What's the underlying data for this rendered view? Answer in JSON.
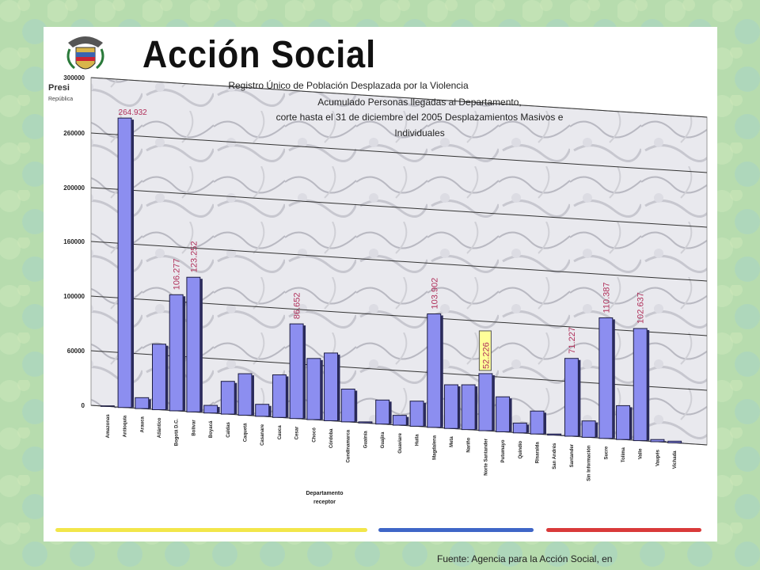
{
  "slide": {
    "logo_text": "Acción Social",
    "presidencia": "Presi",
    "republica": "República",
    "footer": "Fuente: Agencia para la Acción Social, en"
  },
  "chart_data": {
    "type": "bar",
    "title_lines": [
      "Registro Único de Población Desplazada por la Violencia",
      "Acumulado Personas llegadas al Departamento,",
      "corte hasta el 31 de diciembre del 2005 Desplazamientos Masivos e",
      "Individuales"
    ],
    "xlabel": "Departamento receptor",
    "ylabel": "",
    "ylim": [
      0,
      300000
    ],
    "yticks": [
      "300000",
      "260000",
      "200000",
      "160000",
      "100000",
      "60000",
      "0"
    ],
    "categories": [
      "Amazonas",
      "Antioquia",
      "Arauca",
      "Atlántico",
      "Bogotá D.C.",
      "Bolívar",
      "Boyacá",
      "Caldas",
      "Caquetá",
      "Casanare",
      "Cauca",
      "Cesar",
      "Chocó",
      "Córdoba",
      "Cundinamarca",
      "Guainía",
      "Guajira",
      "Guaviare",
      "Huila",
      "Magdalena",
      "Meta",
      "Nariño",
      "Norte Santander",
      "Putumayo",
      "Quindío",
      "Risaralda",
      "San Andrés",
      "Santander",
      "Sin Información",
      "Sucre",
      "Tolima",
      "Valle",
      "Vaupés",
      "Vichada"
    ],
    "values": [
      500,
      264932,
      10000,
      60000,
      106277,
      123252,
      7000,
      30000,
      38000,
      11000,
      39000,
      86652,
      56000,
      62000,
      30000,
      1000,
      22000,
      9000,
      23000,
      103902,
      40000,
      41000,
      52226,
      32000,
      9000,
      21000,
      1000,
      71227,
      15000,
      110387,
      31000,
      102637,
      2000,
      1500
    ],
    "data_labels": {
      "1": "264.932",
      "4": "106.277",
      "5": "123.252",
      "11": "86.652",
      "19": "103.902",
      "22": "52.226",
      "27": "71.227",
      "29": "110.387",
      "31": "102.637"
    },
    "colors": {
      "bar": "#8c8ef0",
      "bar_side": "#2a2a5a",
      "label": "#b0305a",
      "highlight": "#ffff99"
    },
    "grid": true,
    "legend": "none"
  }
}
